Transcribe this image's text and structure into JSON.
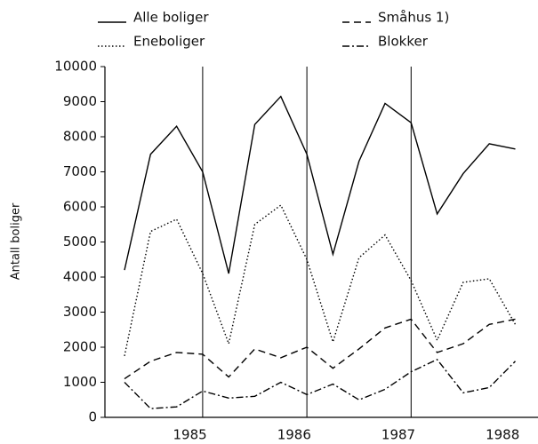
{
  "chart_data": {
    "type": "line",
    "y_label": "Antall boliger",
    "categories": [
      null,
      null,
      "1985",
      null,
      null,
      null,
      "1986",
      null,
      null,
      null,
      "1987",
      null,
      null,
      null,
      "1988",
      null
    ],
    "series": [
      {
        "name": "Alle boliger",
        "color": "#000000",
        "dash": "solid",
        "values": [
          4200,
          7500,
          8300,
          7000,
          4100,
          8350,
          9150,
          7500,
          4650,
          7300,
          8950,
          8400,
          5800,
          6950,
          7800,
          7650
        ]
      },
      {
        "name": "Småhus 1)",
        "color": "#000000",
        "dash": "dashed",
        "values": [
          1100,
          1600,
          1850,
          1800,
          1150,
          1950,
          1700,
          2000,
          1400,
          1950,
          2550,
          2800,
          1850,
          2100,
          2650,
          2800
        ]
      },
      {
        "name": "Eneboliger",
        "color": "#000000",
        "dash": "dotted",
        "values": [
          1750,
          5300,
          5650,
          4100,
          2100,
          5500,
          6050,
          4500,
          2150,
          4550,
          5200,
          3900,
          2200,
          3850,
          3950,
          2650
        ]
      },
      {
        "name": "Blokker",
        "color": "#000000",
        "dash": "dashdot",
        "values": [
          1000,
          250,
          300,
          750,
          550,
          600,
          1000,
          650,
          950,
          500,
          800,
          1300,
          1650,
          700,
          850,
          1600
        ]
      }
    ],
    "ylim": [
      0,
      10000
    ],
    "yticks": [
      0,
      1000,
      2000,
      3000,
      4000,
      5000,
      6000,
      7000,
      8000,
      9000,
      10000
    ]
  }
}
